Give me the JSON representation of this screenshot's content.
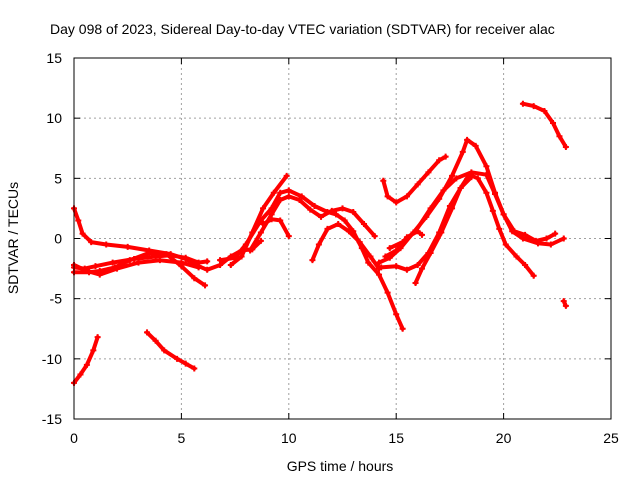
{
  "chart_data": {
    "type": "line",
    "title": "Day 098 of 2023, Sidereal Day-to-day VTEC variation (SDTVAR) for receiver alac",
    "xlabel": "GPS time / hours",
    "ylabel": "SDTVAR / TECUs",
    "xlim": [
      0,
      25
    ],
    "ylim": [
      -15,
      15
    ],
    "xticks": [
      0,
      5,
      10,
      15,
      20,
      25
    ],
    "yticks": [
      -15,
      -10,
      -5,
      0,
      5,
      10,
      15
    ],
    "xtick_labels": [
      "0",
      "5",
      "10",
      "15",
      "20",
      "25"
    ],
    "ytick_labels": [
      "-15",
      "-10",
      "-5",
      "0",
      "5",
      "10",
      "15"
    ],
    "grid": true,
    "color": "#ff0000",
    "series": [
      {
        "name": "arc-1",
        "points": [
          [
            0.0,
            -12.0
          ],
          [
            0.3,
            -11.3
          ],
          [
            0.6,
            -10.5
          ],
          [
            0.9,
            -9.3
          ],
          [
            1.1,
            -8.2
          ]
        ]
      },
      {
        "name": "arc-2",
        "points": [
          [
            3.4,
            -7.8
          ],
          [
            3.8,
            -8.5
          ],
          [
            4.2,
            -9.3
          ],
          [
            4.8,
            -10.0
          ],
          [
            5.2,
            -10.4
          ],
          [
            5.6,
            -10.8
          ]
        ]
      },
      {
        "name": "arc-3",
        "points": [
          [
            0.0,
            2.5
          ],
          [
            0.2,
            1.5
          ],
          [
            0.4,
            0.4
          ],
          [
            0.8,
            -0.3
          ],
          [
            1.5,
            -0.5
          ],
          [
            2.5,
            -0.7
          ],
          [
            3.5,
            -1.0
          ],
          [
            4.5,
            -1.3
          ],
          [
            5.2,
            -1.7
          ],
          [
            5.8,
            -2.3
          ],
          [
            6.2,
            -2.6
          ],
          [
            6.8,
            -2.2
          ],
          [
            7.3,
            -1.5
          ],
          [
            7.8,
            -1.0
          ],
          [
            8.3,
            -0.9
          ],
          [
            8.7,
            -0.2
          ]
        ]
      },
      {
        "name": "arc-4",
        "points": [
          [
            0.0,
            -2.4
          ],
          [
            0.5,
            -2.5
          ],
          [
            1.0,
            -2.3
          ],
          [
            1.8,
            -2.0
          ],
          [
            2.8,
            -1.7
          ],
          [
            3.8,
            -1.5
          ],
          [
            4.5,
            -1.4
          ],
          [
            5.2,
            -1.6
          ],
          [
            5.8,
            -2.0
          ],
          [
            6.2,
            -1.9
          ]
        ]
      },
      {
        "name": "arc-5",
        "points": [
          [
            0.0,
            -2.8
          ],
          [
            0.7,
            -2.8
          ],
          [
            1.2,
            -2.7
          ],
          [
            1.9,
            -2.4
          ],
          [
            2.6,
            -1.8
          ],
          [
            3.5,
            -1.2
          ],
          [
            4.3,
            -1.3
          ],
          [
            5.0,
            -2.3
          ],
          [
            5.6,
            -3.3
          ],
          [
            6.1,
            -3.9
          ]
        ]
      },
      {
        "name": "arc-6",
        "points": [
          [
            0.0,
            -2.2
          ],
          [
            0.6,
            -2.7
          ],
          [
            1.2,
            -3.0
          ],
          [
            2.0,
            -2.5
          ],
          [
            3.0,
            -2.0
          ],
          [
            4.0,
            -1.8
          ],
          [
            5.0,
            -2.0
          ],
          [
            5.8,
            -2.4
          ]
        ]
      },
      {
        "name": "arc-7",
        "points": [
          [
            6.8,
            -1.8
          ],
          [
            7.5,
            -1.6
          ],
          [
            8.0,
            -0.5
          ],
          [
            8.7,
            1.5
          ],
          [
            9.2,
            2.5
          ],
          [
            9.6,
            3.8
          ],
          [
            10.0,
            4.0
          ],
          [
            10.6,
            3.5
          ],
          [
            11.2,
            2.7
          ],
          [
            11.8,
            2.2
          ],
          [
            12.2,
            2.0
          ],
          [
            12.6,
            1.5
          ],
          [
            13.0,
            0.6
          ],
          [
            13.4,
            -0.8
          ],
          [
            13.7,
            -2.0
          ],
          [
            14.2,
            -3.0
          ],
          [
            14.6,
            -4.5
          ],
          [
            15.0,
            -6.3
          ],
          [
            15.3,
            -7.5
          ]
        ]
      },
      {
        "name": "arc-8",
        "points": [
          [
            7.3,
            -2.2
          ],
          [
            7.8,
            -1.5
          ],
          [
            8.3,
            0.5
          ],
          [
            8.8,
            2.5
          ],
          [
            9.3,
            3.8
          ],
          [
            9.9,
            5.2
          ]
        ]
      },
      {
        "name": "arc-9",
        "points": [
          [
            8.2,
            -1.0
          ],
          [
            8.7,
            0.5
          ],
          [
            9.2,
            2.0
          ],
          [
            9.6,
            3.2
          ],
          [
            10.0,
            3.5
          ],
          [
            10.5,
            3.2
          ],
          [
            11.0,
            2.4
          ],
          [
            11.5,
            1.8
          ],
          [
            12.0,
            2.3
          ],
          [
            12.5,
            2.5
          ],
          [
            13.0,
            2.2
          ],
          [
            13.5,
            1.2
          ],
          [
            14.0,
            0.2
          ]
        ]
      },
      {
        "name": "arc-10",
        "points": [
          [
            8.8,
            1.2
          ],
          [
            9.2,
            1.6
          ],
          [
            9.6,
            1.5
          ],
          [
            10.0,
            0.2
          ]
        ]
      },
      {
        "name": "arc-11",
        "points": [
          [
            11.1,
            -1.8
          ],
          [
            11.4,
            -0.5
          ],
          [
            11.8,
            0.8
          ],
          [
            12.3,
            1.2
          ],
          [
            12.8,
            0.6
          ],
          [
            13.3,
            -0.3
          ],
          [
            13.8,
            -1.5
          ],
          [
            14.2,
            -2.5
          ]
        ]
      },
      {
        "name": "arc-12",
        "points": [
          [
            14.4,
            4.8
          ],
          [
            14.6,
            3.5
          ],
          [
            15.0,
            3.0
          ],
          [
            15.5,
            3.5
          ],
          [
            16.0,
            4.5
          ],
          [
            16.5,
            5.5
          ],
          [
            17.0,
            6.5
          ],
          [
            17.3,
            6.8
          ]
        ]
      },
      {
        "name": "arc-13",
        "points": [
          [
            14.2,
            -2.0
          ],
          [
            14.7,
            -1.6
          ],
          [
            15.2,
            -0.8
          ],
          [
            15.8,
            0.5
          ],
          [
            16.4,
            1.8
          ],
          [
            17.0,
            3.3
          ],
          [
            17.6,
            5.2
          ],
          [
            18.1,
            7.2
          ],
          [
            18.3,
            8.2
          ],
          [
            18.7,
            7.7
          ],
          [
            19.2,
            6.0
          ],
          [
            19.6,
            3.8
          ],
          [
            20.0,
            2.0
          ],
          [
            20.5,
            0.6
          ],
          [
            21.0,
            0.3
          ],
          [
            21.5,
            -0.2
          ],
          [
            22.0,
            0.0
          ],
          [
            22.4,
            0.4
          ]
        ]
      },
      {
        "name": "arc-14",
        "points": [
          [
            14.3,
            -2.4
          ],
          [
            15.0,
            -2.3
          ],
          [
            15.5,
            -2.6
          ],
          [
            16.0,
            -2.2
          ],
          [
            16.5,
            -1.2
          ],
          [
            17.0,
            0.5
          ],
          [
            17.5,
            2.7
          ],
          [
            18.0,
            4.2
          ],
          [
            18.4,
            5.3
          ],
          [
            18.8,
            5.0
          ],
          [
            19.2,
            3.8
          ],
          [
            19.5,
            2.3
          ],
          [
            19.8,
            0.8
          ],
          [
            20.1,
            -0.5
          ],
          [
            20.6,
            -1.5
          ],
          [
            21.0,
            -2.2
          ],
          [
            21.4,
            -3.1
          ]
        ]
      },
      {
        "name": "arc-15",
        "points": [
          [
            14.7,
            -0.8
          ],
          [
            15.3,
            -0.3
          ],
          [
            15.9,
            0.6
          ],
          [
            16.6,
            2.5
          ],
          [
            17.2,
            4.0
          ],
          [
            17.8,
            5.0
          ],
          [
            18.5,
            5.5
          ],
          [
            19.2,
            5.3
          ],
          [
            19.6,
            3.7
          ],
          [
            20.0,
            2.0
          ],
          [
            20.4,
            0.6
          ],
          [
            20.9,
            0.0
          ],
          [
            21.6,
            -0.4
          ],
          [
            22.2,
            -0.5
          ],
          [
            22.8,
            0.0
          ]
        ]
      },
      {
        "name": "arc-16",
        "points": [
          [
            15.9,
            -3.7
          ],
          [
            16.2,
            -2.5
          ],
          [
            16.6,
            -1.2
          ],
          [
            17.1,
            0.5
          ],
          [
            17.6,
            2.5
          ],
          [
            18.0,
            4.2
          ],
          [
            18.5,
            5.1
          ]
        ]
      },
      {
        "name": "arc-17",
        "points": [
          [
            14.5,
            -1.5
          ],
          [
            15.0,
            -1.0
          ],
          [
            15.5,
            0.1
          ],
          [
            16.0,
            0.6
          ],
          [
            16.2,
            0.3
          ]
        ]
      },
      {
        "name": "arc-18",
        "points": [
          [
            20.9,
            11.2
          ],
          [
            21.4,
            11.0
          ],
          [
            21.9,
            10.6
          ],
          [
            22.3,
            9.6
          ],
          [
            22.6,
            8.5
          ],
          [
            22.9,
            7.6
          ]
        ]
      },
      {
        "name": "arc-19",
        "points": [
          [
            22.8,
            -5.2
          ],
          [
            22.9,
            -5.6
          ]
        ]
      }
    ]
  }
}
